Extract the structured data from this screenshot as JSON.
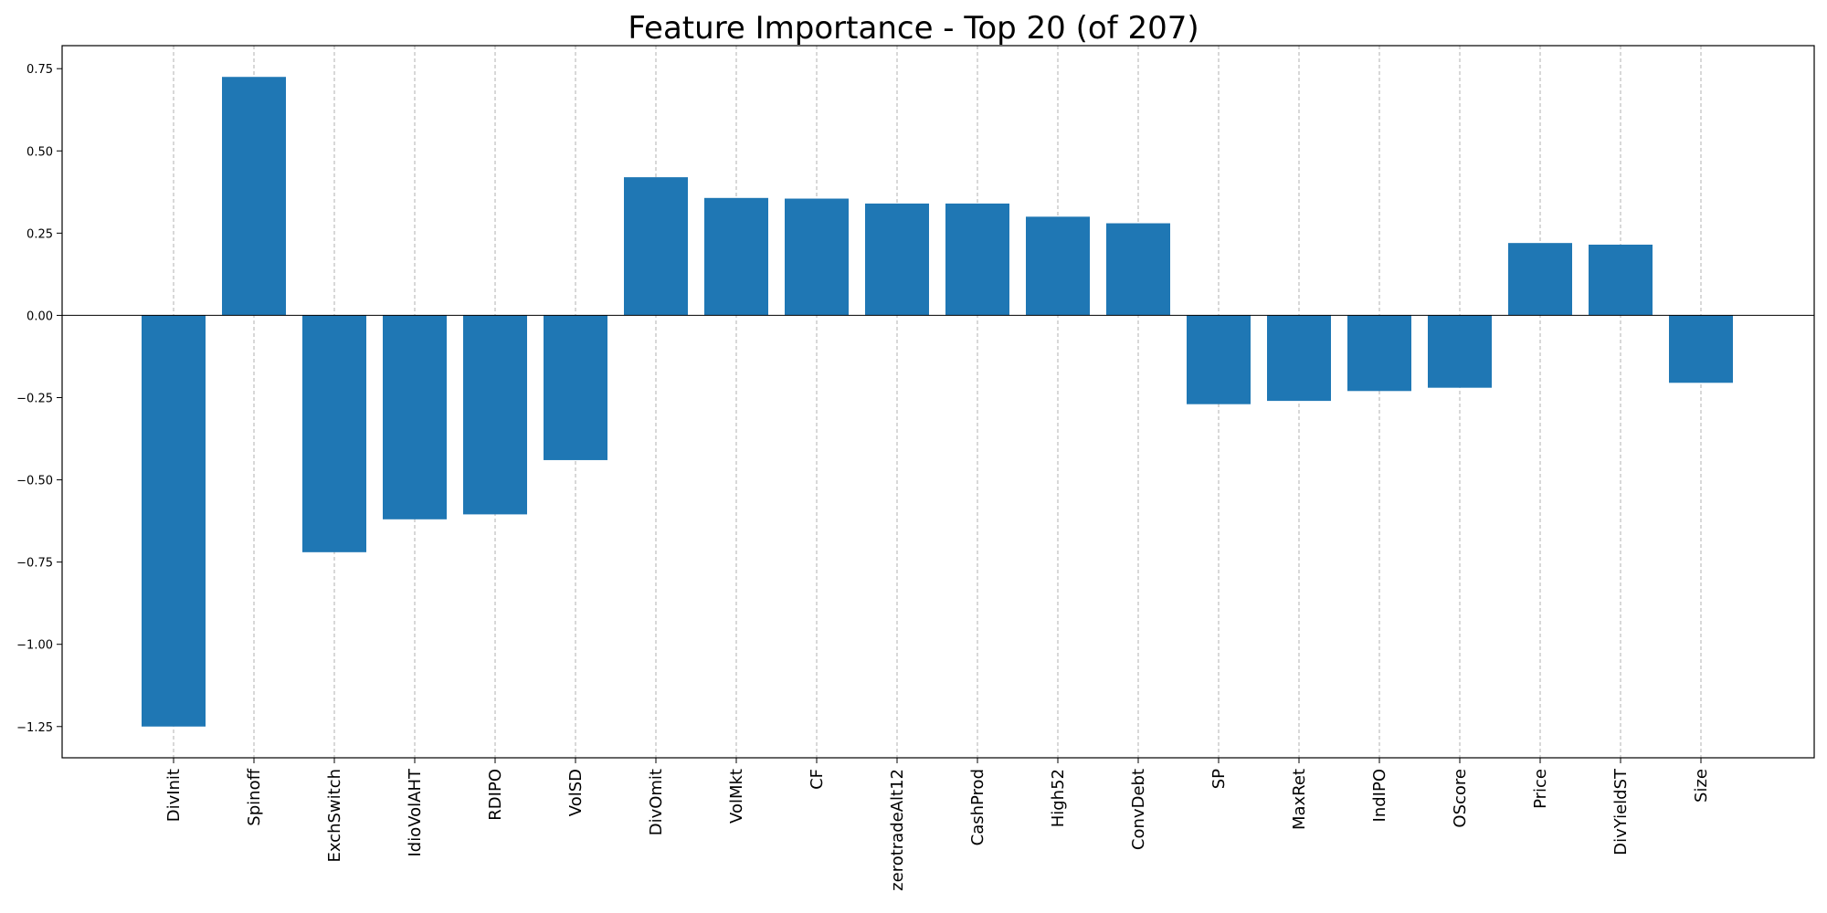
{
  "chart_data": {
    "type": "bar",
    "title": "Feature Importance - Top 20 (of 207)",
    "xlabel": "",
    "ylabel": "",
    "categories": [
      "DivInit",
      "Spinoff",
      "ExchSwitch",
      "IdioVolAHT",
      "RDIPO",
      "VolSD",
      "DivOmit",
      "VolMkt",
      "CF",
      "zerotradeAlt12",
      "CashProd",
      "High52",
      "ConvDebt",
      "SP",
      "MaxRet",
      "IndIPO",
      "OScore",
      "Price",
      "DivYieldST",
      "Size"
    ],
    "values": [
      -1.25,
      0.725,
      -0.72,
      -0.62,
      -0.605,
      -0.44,
      0.42,
      0.357,
      0.355,
      0.34,
      0.34,
      0.3,
      0.28,
      -0.27,
      -0.26,
      -0.23,
      -0.22,
      0.22,
      0.215,
      -0.205
    ],
    "ylim": [
      -1.345,
      0.82
    ],
    "yticks": [
      0.75,
      0.5,
      0.25,
      0.0,
      -0.25,
      -0.5,
      -0.75,
      -1.0,
      -1.25
    ],
    "ytick_labels": [
      "0.75",
      "0.50",
      "0.25",
      "0.00",
      "−0.25",
      "−0.50",
      "−0.75",
      "−1.00",
      "−1.25"
    ],
    "grid": "x",
    "zero_line": true,
    "bar_color": "#1f77b4"
  }
}
